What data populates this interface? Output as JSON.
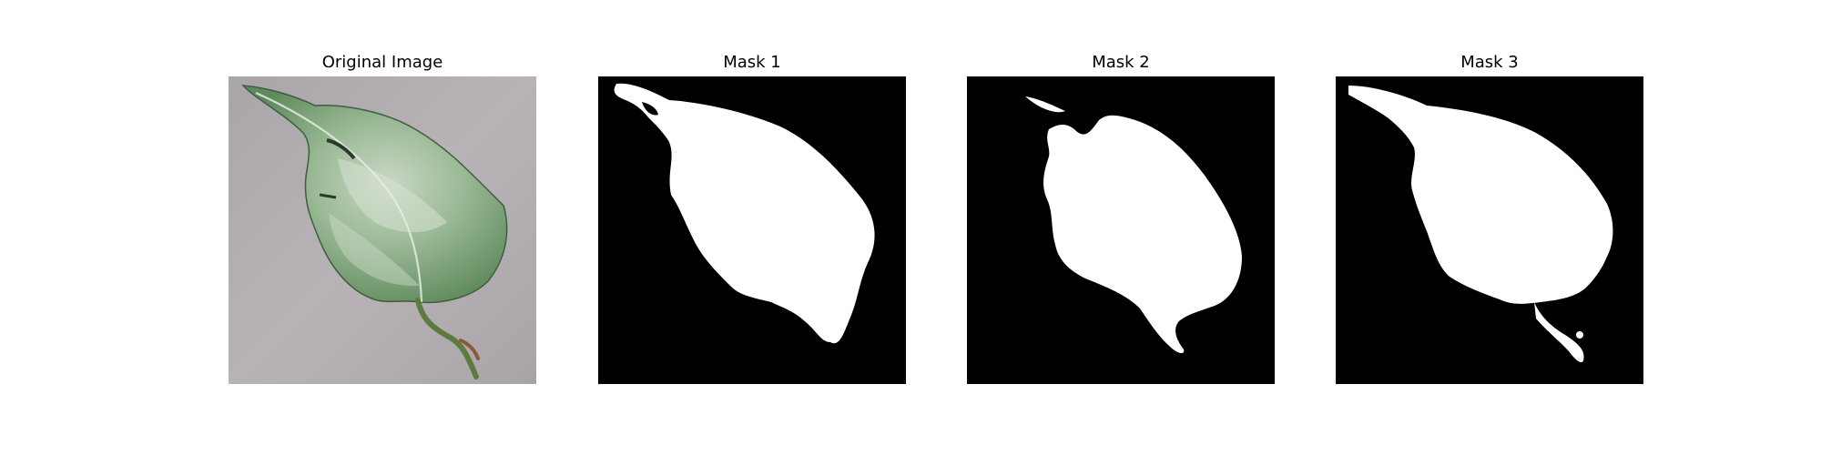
{
  "figure": {
    "panels": [
      {
        "title": "Original Image",
        "kind": "photo",
        "subject": "leaf-icon"
      },
      {
        "title": "Mask 1",
        "kind": "mask"
      },
      {
        "title": "Mask 2",
        "kind": "mask"
      },
      {
        "title": "Mask 3",
        "kind": "mask"
      }
    ],
    "colors": {
      "page_background": "#ffffff",
      "photo_background": "#b4afb3",
      "leaf_fill": "#7a9e78",
      "leaf_highlight": "#c9d8c4",
      "leaf_shadow": "#4e6e4d",
      "stem": "#5f7a3e",
      "mask_background": "#000000",
      "mask_foreground": "#ffffff"
    }
  }
}
